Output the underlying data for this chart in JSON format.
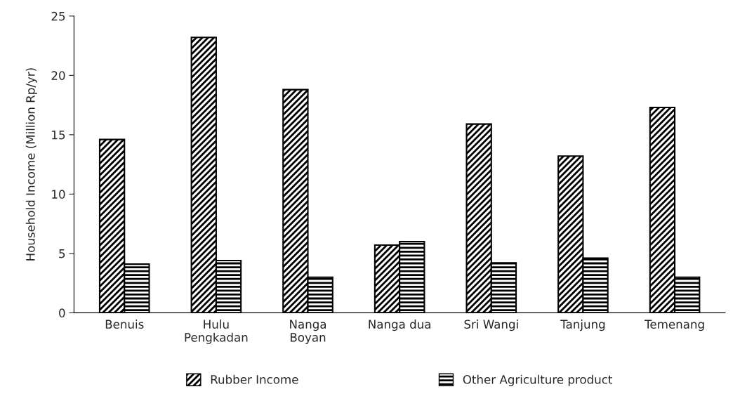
{
  "chart_data": {
    "type": "bar",
    "ylabel": "Household Income (Million Rp/yr)",
    "categories": [
      "Benuis",
      "Hulu\nPengkadan",
      "Nanga\nBoyan",
      "Nanga dua",
      "Sri Wangi",
      "Tanjung",
      "Temenang"
    ],
    "series": [
      {
        "name": "Rubber Income",
        "color": "#000000",
        "values": [
          14.6,
          23.2,
          18.8,
          5.7,
          15.9,
          13.2,
          17.3
        ]
      },
      {
        "name": "Other Agriculture product",
        "color": "#000000",
        "values": [
          4.1,
          4.4,
          3.0,
          6.0,
          4.2,
          4.6,
          3.0
        ]
      }
    ],
    "ylim": [
      0,
      25
    ],
    "yticks": [
      0,
      5,
      10,
      15,
      20,
      25
    ],
    "grid": false,
    "legend": "bottom"
  }
}
